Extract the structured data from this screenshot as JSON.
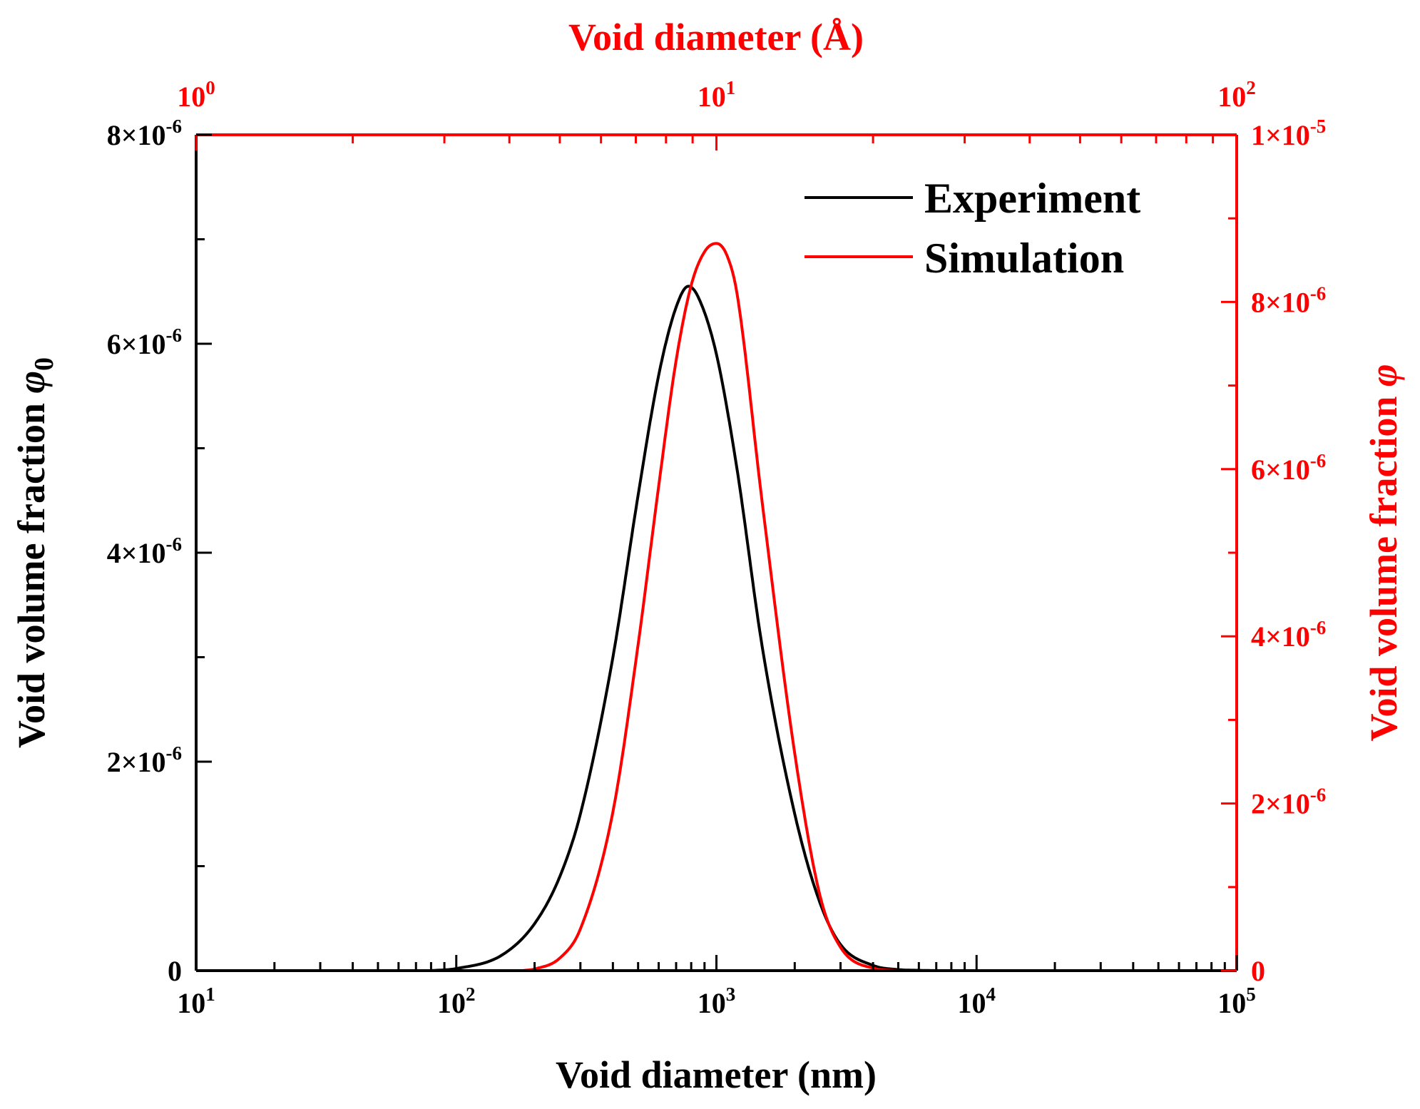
{
  "chart_data": {
    "type": "line",
    "bottom_axis": {
      "label": "Void diameter (nm)",
      "scale": "log",
      "range": [
        10,
        100000
      ],
      "ticks": [
        {
          "base": "10",
          "exp": "1"
        },
        {
          "base": "10",
          "exp": "2"
        },
        {
          "base": "10",
          "exp": "3"
        },
        {
          "base": "10",
          "exp": "4"
        },
        {
          "base": "10",
          "exp": "5"
        }
      ]
    },
    "top_axis": {
      "label": "Void diameter (Å)",
      "scale": "log",
      "range": [
        1,
        100
      ],
      "color": "#ff0000",
      "ticks": [
        {
          "base": "10",
          "exp": "0"
        },
        {
          "base": "10",
          "exp": "1"
        },
        {
          "base": "10",
          "exp": "2"
        }
      ]
    },
    "left_axis": {
      "label": "Void volume fraction ",
      "label_symbol": "φ",
      "label_subscript": "0",
      "range": [
        0,
        8e-06
      ],
      "ticks": [
        {
          "value": 0,
          "base": "0",
          "exp": ""
        },
        {
          "value": 2e-06,
          "base": "2×10",
          "exp": "-6"
        },
        {
          "value": 4e-06,
          "base": "4×10",
          "exp": "-6"
        },
        {
          "value": 6e-06,
          "base": "6×10",
          "exp": "-6"
        },
        {
          "value": 8e-06,
          "base": "8×10",
          "exp": "-6"
        }
      ]
    },
    "right_axis": {
      "label": "Void volume fraction ",
      "label_symbol": "φ",
      "color": "#ff0000",
      "range": [
        0,
        1e-05
      ],
      "ticks": [
        {
          "value": 0,
          "base": "0",
          "exp": ""
        },
        {
          "value": 2e-06,
          "base": "2×10",
          "exp": "-6"
        },
        {
          "value": 4e-06,
          "base": "4×10",
          "exp": "-6"
        },
        {
          "value": 6e-06,
          "base": "6×10",
          "exp": "-6"
        },
        {
          "value": 8e-06,
          "base": "8×10",
          "exp": "-6"
        },
        {
          "value": 1e-05,
          "base": "1×10",
          "exp": "-5"
        }
      ]
    },
    "series": [
      {
        "name": "Experiment",
        "color": "#000000",
        "axis": "left",
        "x": [
          80,
          100,
          150,
          200,
          250,
          300,
          400,
          500,
          600,
          700,
          780,
          850,
          1000,
          1200,
          1500,
          2000,
          2500,
          3000,
          4000,
          5000,
          6000,
          7000
        ],
        "y": [
          0,
          2e-08,
          1.5e-07,
          4.5e-07,
          9e-07,
          1.5e-06,
          3e-06,
          4.55e-06,
          5.7e-06,
          6.35e-06,
          6.55e-06,
          6.45e-06,
          5.9e-06,
          4.8e-06,
          3.1e-06,
          1.5e-06,
          6.5e-07,
          2.5e-07,
          5e-08,
          1e-08,
          3e-09,
          0
        ]
      },
      {
        "name": "Simulation",
        "color": "#ff0000",
        "axis": "right",
        "x": [
          180,
          200,
          250,
          300,
          400,
          500,
          600,
          700,
          800,
          900,
          1000,
          1100,
          1200,
          1500,
          2000,
          2500,
          3000,
          4000,
          5000
        ],
        "y": [
          0,
          2e-08,
          1.5e-07,
          5e-07,
          1.9e-06,
          3.9e-06,
          5.8e-06,
          7.3e-06,
          8.2e-06,
          8.6e-06,
          8.7e-06,
          8.55e-06,
          8.1e-06,
          5.6e-06,
          2.6e-06,
          9e-07,
          2.8e-07,
          3e-08,
          0
        ]
      }
    ],
    "legend": {
      "position": "top-right",
      "entries": [
        "Experiment",
        "Simulation"
      ]
    }
  }
}
